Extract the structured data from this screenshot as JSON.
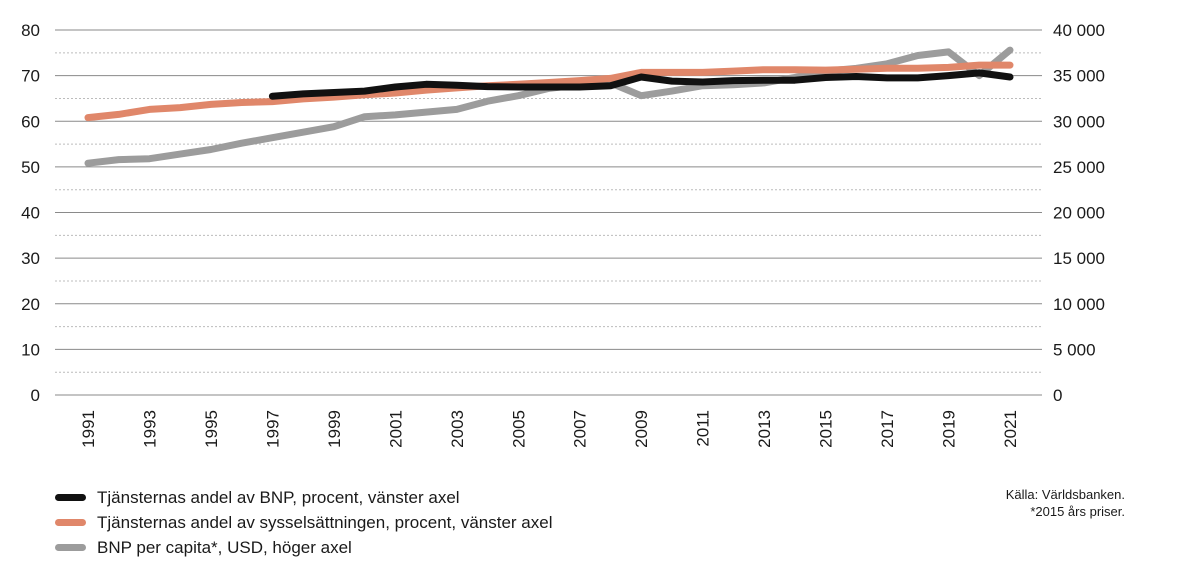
{
  "chart_data": {
    "type": "line",
    "x": [
      1991,
      1992,
      1993,
      1994,
      1995,
      1996,
      1997,
      1998,
      1999,
      2000,
      2001,
      2002,
      2003,
      2004,
      2005,
      2006,
      2007,
      2008,
      2009,
      2010,
      2011,
      2012,
      2013,
      2014,
      2015,
      2016,
      2017,
      2018,
      2019,
      2020,
      2021
    ],
    "x_tick_labels": [
      "1991",
      "1993",
      "1995",
      "1997",
      "1999",
      "2001",
      "2003",
      "2005",
      "2007",
      "2009",
      "2011",
      "2013",
      "2015",
      "2017",
      "2019",
      "2021"
    ],
    "y_left": {
      "ylim": [
        0,
        80
      ],
      "tick_labels": [
        "0",
        "10",
        "20",
        "30",
        "40",
        "50",
        "60",
        "70",
        "80"
      ]
    },
    "y_right": {
      "ylim": [
        0,
        40000
      ],
      "tick_labels": [
        "0",
        "5 000",
        "10 000",
        "15 000",
        "20 000",
        "25 000",
        "30 000",
        "35 000",
        "40 000"
      ]
    },
    "grid": true,
    "series": [
      {
        "name": "BNP per capita*, USD, höger axel",
        "axis": "right",
        "color": "#9c9c9c",
        "values": [
          25400,
          25800,
          25900,
          26400,
          26900,
          27600,
          28200,
          28800,
          29400,
          30500,
          30700,
          31000,
          31300,
          32200,
          32800,
          33600,
          34000,
          34200,
          32800,
          33300,
          33900,
          34000,
          34200,
          34800,
          35500,
          35800,
          36300,
          37200,
          37600,
          35000,
          37800
        ]
      },
      {
        "name": "Tjänsternas andel av sysselsättningen, procent, vänster axel",
        "axis": "left",
        "color": "#e0876a",
        "values": [
          60.8,
          61.5,
          62.6,
          63.0,
          63.7,
          64.1,
          64.3,
          64.9,
          65.3,
          65.8,
          66.2,
          66.8,
          67.3,
          67.8,
          68.1,
          68.5,
          68.9,
          69.4,
          70.7,
          70.7,
          70.7,
          71.0,
          71.3,
          71.3,
          71.2,
          71.4,
          71.6,
          71.6,
          71.8,
          72.3,
          72.3
        ]
      },
      {
        "name": "Tjänsternas andel av BNP, procent, vänster axel",
        "axis": "left",
        "color": "#111111",
        "values": [
          null,
          null,
          null,
          null,
          null,
          null,
          65.5,
          66.0,
          66.3,
          66.6,
          67.5,
          68.1,
          67.9,
          67.6,
          67.5,
          67.5,
          67.5,
          67.8,
          69.7,
          68.8,
          68.6,
          68.9,
          69.0,
          69.0,
          69.6,
          69.8,
          69.5,
          69.5,
          70.0,
          70.6,
          69.7
        ]
      }
    ],
    "legend": {
      "placement": "bottom-left",
      "order": [
        2,
        1,
        0
      ]
    },
    "source": {
      "line1": "Källa: Världsbanken.",
      "line2": "*2015 års priser."
    }
  }
}
